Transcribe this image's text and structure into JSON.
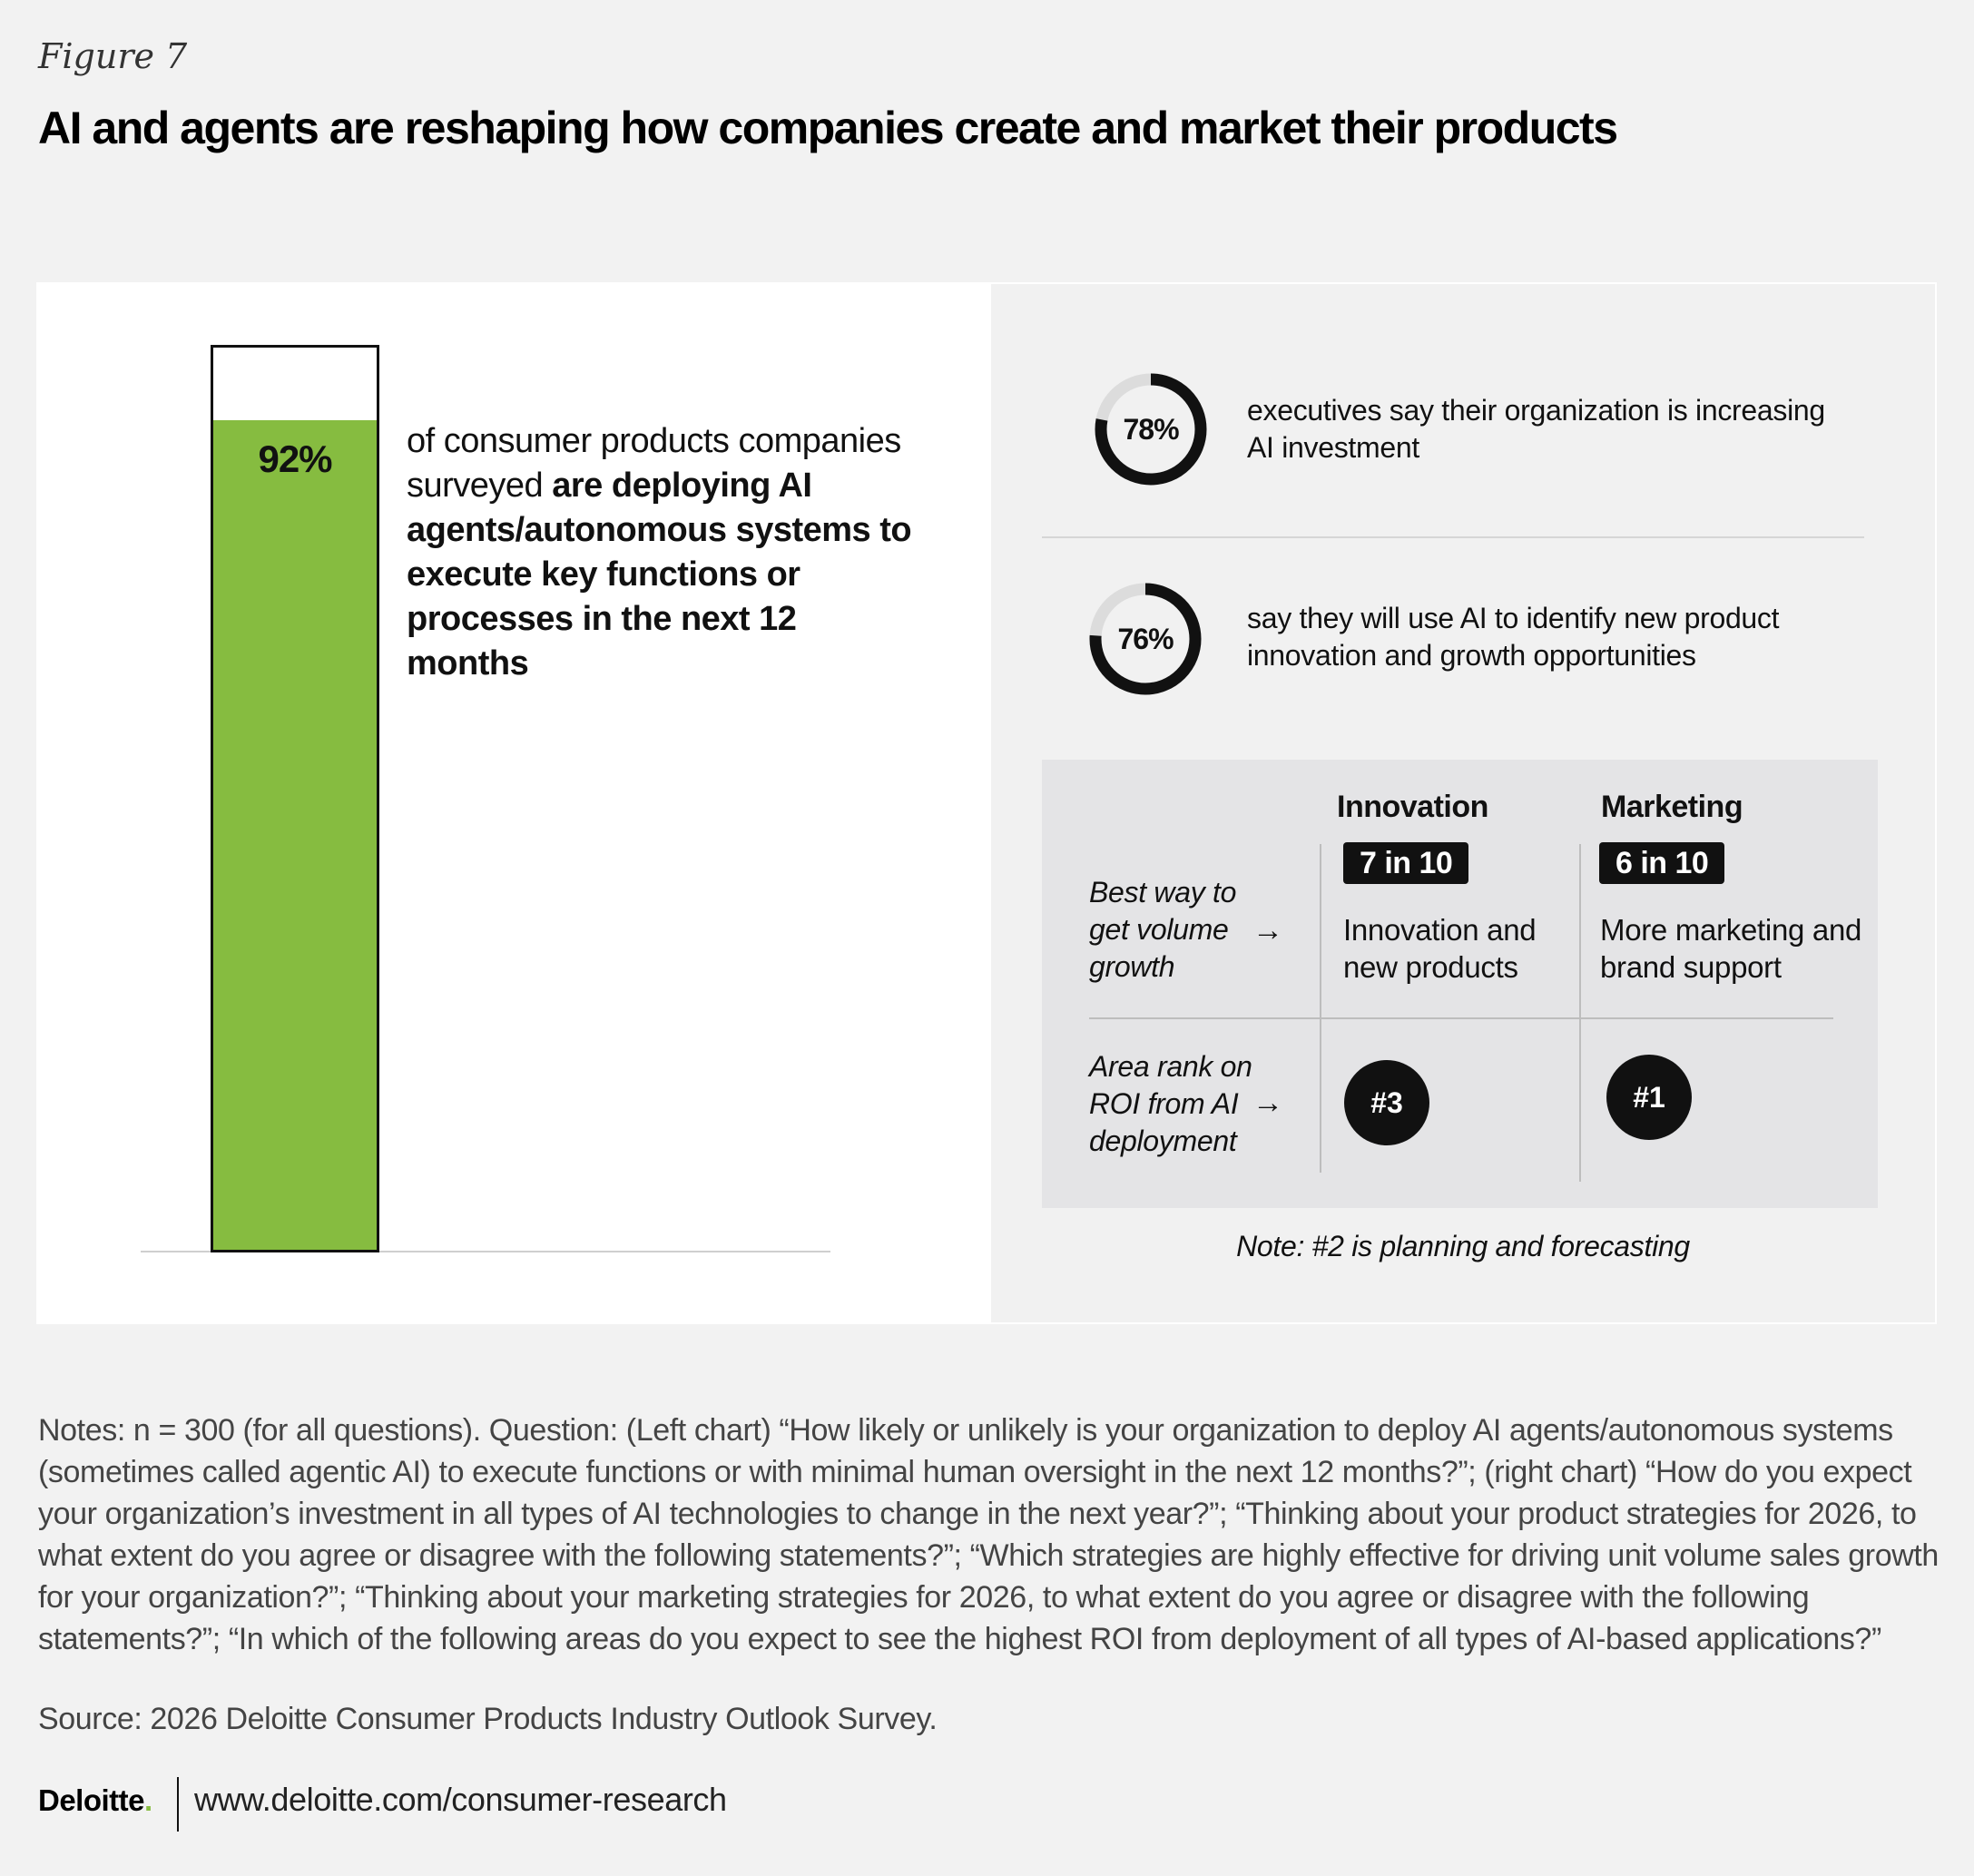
{
  "figure_label": "Figure 7",
  "title": "AI and agents are reshaping how companies create and market their products",
  "chart_data": [
    {
      "type": "bar",
      "categories": [
        ""
      ],
      "values": [
        92
      ],
      "ylim": [
        0,
        100
      ],
      "value_label": "92%",
      "text_regular": "of consumer products companies surveyed ",
      "text_bold": "are deploying AI agents/autonomous systems to execute key functions or processes in the next 12 months",
      "colors": {
        "fill": "#86bc40",
        "frame": "#111111"
      }
    },
    {
      "type": "pie",
      "name": "donuts",
      "items": [
        {
          "value": 78,
          "label": "78%",
          "text": "executives say their organization is increasing AI investment"
        },
        {
          "value": 76,
          "label": "76%",
          "text": "say they will use AI to identify new product innovation and growth opportunities"
        }
      ],
      "colors": {
        "filled": "#111111",
        "track": "#dcdcdc"
      }
    },
    {
      "type": "table",
      "columns": [
        "Innovation",
        "Marketing"
      ],
      "rows": [
        {
          "label": "Best way to get volume growth",
          "arrow": "→",
          "cells": [
            {
              "badge": "7 in 10",
              "text": "Innovation and new products"
            },
            {
              "badge": "6 in 10",
              "text": "More marketing and brand support"
            }
          ]
        },
        {
          "label": "Area rank on ROI from AI deployment",
          "arrow": "→",
          "cells": [
            {
              "rank": "#3"
            },
            {
              "rank": "#1"
            }
          ]
        }
      ],
      "note": "Note: #2 is planning and forecasting"
    }
  ],
  "notes": "Notes: n = 300 (for all questions). Question:  (Left chart) “How likely or unlikely is your organization to deploy AI agents/autonomous systems (sometimes called agentic AI) to execute functions or with minimal human oversight in the next 12 months?”; (right chart) “How do you expect your organization’s investment in all types of AI technologies to change in the next year?”; “Thinking about your product strategies for 2026, to what extent do you agree or disagree with the following statements?”; “Which strategies are highly effective for driving unit volume sales growth for your organization?”; “Thinking about your marketing strategies for 2026, to what extent do you agree or disagree with the following statements?”; “In which of the following areas do you expect to see the highest ROI from deployment of all types of AI-based applications?”",
  "source": "Source: 2026 Deloitte Consumer Products Industry Outlook Survey.",
  "footer": {
    "brand": "Deloitte",
    "brand_dot": ".",
    "url": "www.deloitte.com/consumer-research"
  }
}
